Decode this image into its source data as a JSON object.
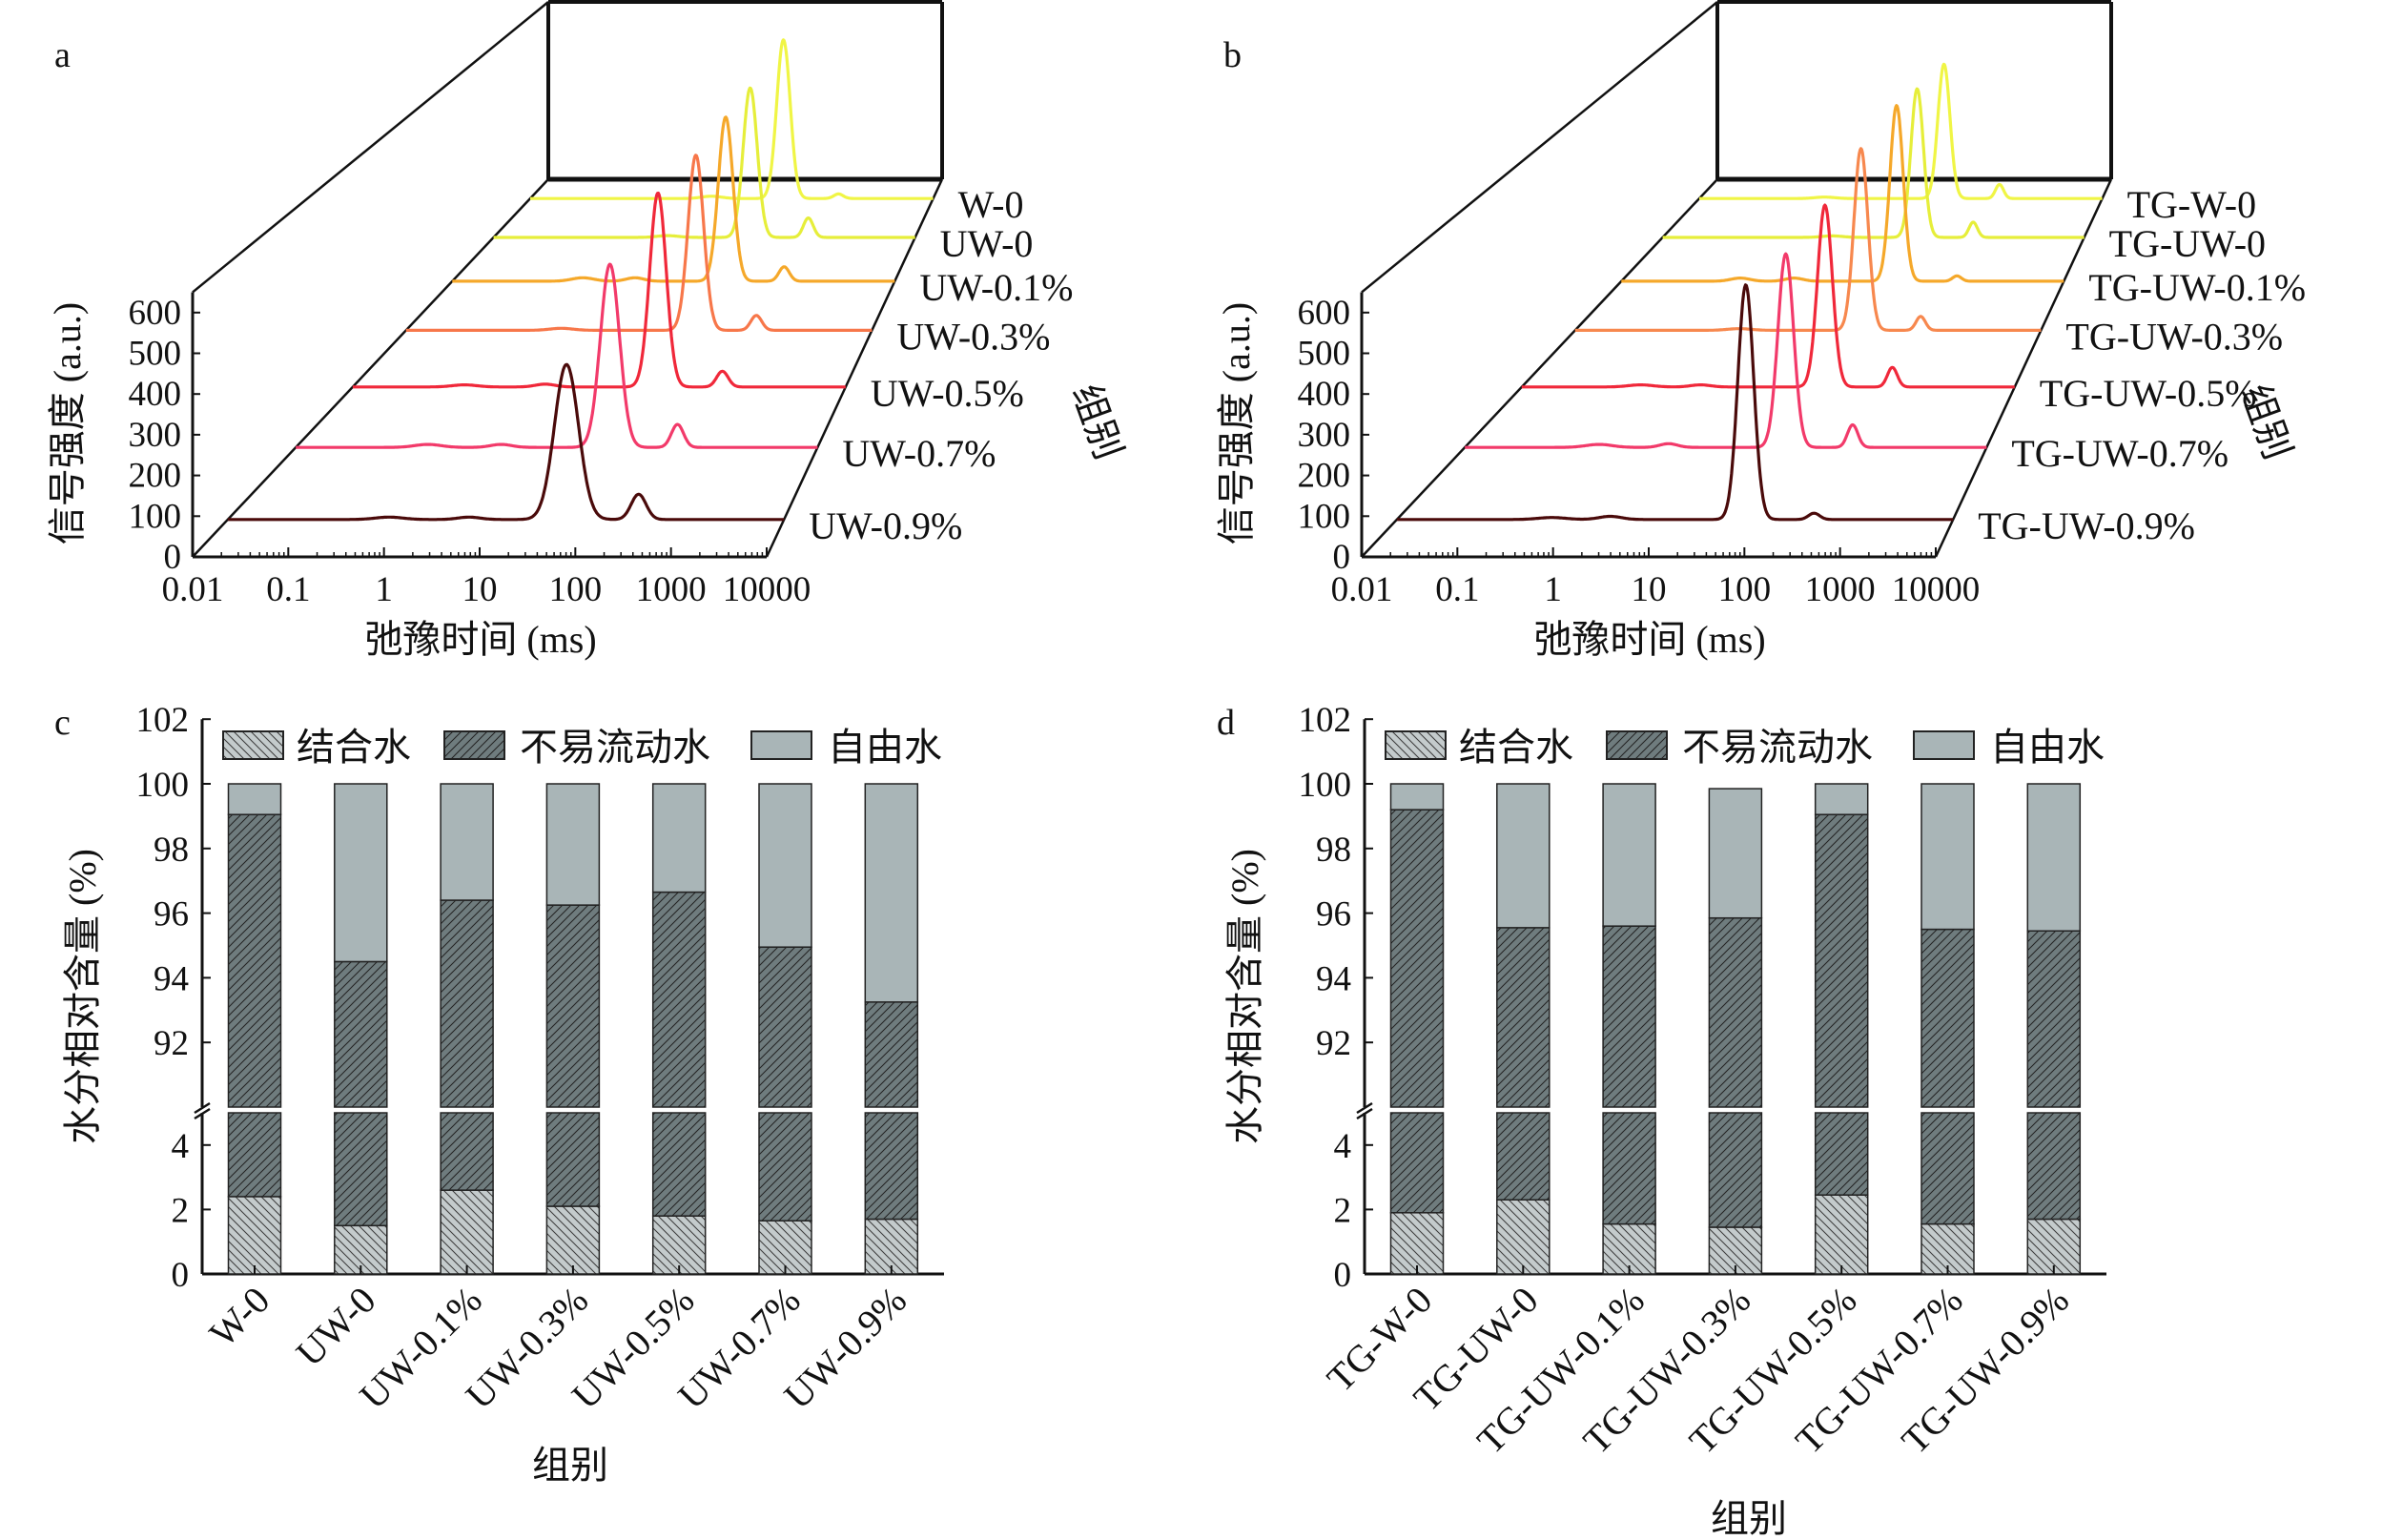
{
  "chart_data": [
    {
      "panel": "a",
      "type": "line",
      "xlabel": "弛豫时间 (ms)",
      "ylabel": "信号强度 (a.u.)",
      "zlabel": "组别",
      "x_scale": "log",
      "xlim": [
        0.01,
        10000
      ],
      "ylim": [
        0,
        650
      ],
      "x_ticks": [
        "0.01",
        "0.1",
        "1",
        "10",
        "100",
        "1000",
        "10000"
      ],
      "y_ticks": [
        "0",
        "100",
        "200",
        "300",
        "400",
        "500",
        "600"
      ],
      "peak_format": "[relaxation time ms, amplitude a.u., gaussian width in log10 decades]",
      "series": [
        {
          "name": "W-0",
          "color": "#f0f545",
          "peaks": [
            [
              59,
              555,
              0.1
            ],
            [
              389,
              16,
              0.07
            ],
            [
              5,
              8,
              0.15
            ]
          ]
        },
        {
          "name": "UW-0",
          "color": "#e6ee3a",
          "peaks": [
            [
              45,
              500,
              0.1
            ],
            [
              302,
              65,
              0.07
            ],
            [
              3,
              6,
              0.15
            ]
          ]
        },
        {
          "name": "UW-0.1%",
          "color": "#f5a82a",
          "peaks": [
            [
              51,
              523,
              0.1
            ],
            [
              316,
              46,
              0.07
            ],
            [
              0.59,
              11,
              0.15
            ],
            [
              3,
              11,
              0.12
            ]
          ]
        },
        {
          "name": "UW-0.3%",
          "color": "#f7774a",
          "peaks": [
            [
              54,
              530,
              0.1
            ],
            [
              324,
              45,
              0.07
            ],
            [
              1,
              6,
              0.15
            ]
          ]
        },
        {
          "name": "UW-0.5%",
          "color": "#f0283a",
          "peaks": [
            [
              52,
              555,
              0.1
            ],
            [
              316,
              45,
              0.07
            ],
            [
              0.23,
              6,
              0.15
            ],
            [
              2.2,
              8,
              0.12
            ]
          ]
        },
        {
          "name": "UW-0.7%",
          "color": "#f23a6a",
          "peaks": [
            [
              41,
              495,
              0.11
            ],
            [
              245,
              62,
              0.07
            ],
            [
              0.33,
              8,
              0.15
            ],
            [
              2.3,
              8,
              0.12
            ]
          ]
        },
        {
          "name": "UW-0.9%",
          "color": "#4a0a0a",
          "peaks": [
            [
              45,
              393,
              0.13
            ],
            [
              270,
              64,
              0.08
            ],
            [
              0.55,
              6,
              0.15
            ],
            [
              4,
              6,
              0.12
            ]
          ]
        }
      ]
    },
    {
      "panel": "b",
      "type": "line",
      "xlabel": "弛豫时间 (ms)",
      "ylabel": "信号强度 (a.u.)",
      "zlabel": "组别",
      "x_scale": "log",
      "xlim": [
        0.01,
        10000
      ],
      "ylim": [
        0,
        650
      ],
      "x_ticks": [
        "0.01",
        "0.1",
        "1",
        "10",
        "100",
        "1000",
        "10000"
      ],
      "y_ticks": [
        "0",
        "100",
        "200",
        "300",
        "400",
        "500",
        "600"
      ],
      "peak_format": "[relaxation time ms, amplitude a.u., gaussian width in log10 decades]",
      "series": [
        {
          "name": "TG-W-0",
          "color": "#f0f545",
          "peaks": [
            [
              44,
              470,
              0.09
            ],
            [
              295,
              49,
              0.06
            ],
            [
              0.74,
              5,
              0.15
            ]
          ]
        },
        {
          "name": "TG-UW-0",
          "color": "#e6ee3a",
          "peaks": [
            [
              42,
              497,
              0.09
            ],
            [
              263,
              51,
              0.06
            ],
            [
              2.6,
              5,
              0.15
            ]
          ]
        },
        {
          "name": "TG-UW-0.1%",
          "color": "#f5a82a",
          "peaks": [
            [
              54,
              560,
              0.09
            ],
            [
              355,
              17,
              0.06
            ],
            [
              0.41,
              10,
              0.13
            ],
            [
              2.2,
              10,
              0.12
            ]
          ]
        },
        {
          "name": "TG-UW-0.3%",
          "color": "#f7884e",
          "peaks": [
            [
              48,
              550,
              0.09
            ],
            [
              282,
              42,
              0.06
            ],
            [
              1.3,
              5,
              0.15
            ]
          ]
        },
        {
          "name": "TG-UW-0.5%",
          "color": "#f0283a",
          "peaks": [
            [
              49,
              520,
              0.09
            ],
            [
              324,
              56,
              0.06
            ],
            [
              0.28,
              6,
              0.15
            ],
            [
              1.5,
              6,
              0.12
            ]
          ]
        },
        {
          "name": "TG-UW-0.7%",
          "color": "#f23a6a",
          "peaks": [
            [
              49,
              523,
              0.09
            ],
            [
              288,
              61,
              0.06
            ],
            [
              0.35,
              8,
              0.15
            ],
            [
              2.2,
              10,
              0.1
            ]
          ]
        },
        {
          "name": "TG-UW-0.9%",
          "color": "#4a0a0a",
          "peaks": [
            [
              58,
              595,
              0.085
            ],
            [
              316,
              16,
              0.06
            ],
            [
              0.47,
              5,
              0.15
            ],
            [
              2.0,
              8,
              0.12
            ]
          ]
        }
      ]
    },
    {
      "panel": "c",
      "type": "bar",
      "stacked": true,
      "xlabel": "组别",
      "ylabel": "水分相对含量 (%)",
      "y_axis_break": [
        [
          0,
          5
        ],
        [
          90,
          102
        ]
      ],
      "y_ticks_lower": [
        "0",
        "2",
        "4"
      ],
      "y_ticks_upper": [
        "92",
        "94",
        "96",
        "98",
        "100",
        "102"
      ],
      "legend_placement": "top",
      "categories": [
        "W-0",
        "UW-0",
        "UW-0.1%",
        "UW-0.3%",
        "UW-0.5%",
        "UW-0.7%",
        "UW-0.9%"
      ],
      "series": [
        {
          "name": "结合水",
          "color": "#c4cbcc",
          "hatch": "back-diagonal",
          "values": [
            2.4,
            1.5,
            2.6,
            2.1,
            1.8,
            1.65,
            1.7
          ]
        },
        {
          "name": "不易流动水",
          "color": "#6f7c7e",
          "hatch": "diagonal",
          "values": [
            96.65,
            93.0,
            93.8,
            94.15,
            94.85,
            93.3,
            91.55
          ]
        },
        {
          "name": "自由水",
          "color": "#a9b5b7",
          "hatch": "none",
          "values": [
            0.95,
            5.5,
            3.6,
            3.75,
            3.35,
            5.05,
            6.75
          ]
        }
      ]
    },
    {
      "panel": "d",
      "type": "bar",
      "stacked": true,
      "xlabel": "组别",
      "ylabel": "水分相对含量 (%)",
      "y_axis_break": [
        [
          0,
          5
        ],
        [
          90,
          102
        ]
      ],
      "y_ticks_lower": [
        "0",
        "2",
        "4"
      ],
      "y_ticks_upper": [
        "92",
        "94",
        "96",
        "98",
        "100",
        "102"
      ],
      "legend_placement": "top",
      "categories": [
        "TG-W-0",
        "TG-UW-0",
        "TG-UW-0.1%",
        "TG-UW-0.3%",
        "TG-UW-0.5%",
        "TG-UW-0.7%",
        "TG-UW-0.9%"
      ],
      "series": [
        {
          "name": "结合水",
          "color": "#c4cbcc",
          "hatch": "back-diagonal",
          "values": [
            1.9,
            2.3,
            1.55,
            1.45,
            2.45,
            1.55,
            1.7
          ]
        },
        {
          "name": "不易流动水",
          "color": "#6f7c7e",
          "hatch": "diagonal",
          "values": [
            97.3,
            93.25,
            94.05,
            94.4,
            96.6,
            93.95,
            93.75
          ]
        },
        {
          "name": "自由水",
          "color": "#a9b5b7",
          "hatch": "none",
          "values": [
            0.8,
            4.45,
            4.4,
            4.0,
            0.95,
            4.5,
            4.55
          ]
        }
      ]
    }
  ]
}
